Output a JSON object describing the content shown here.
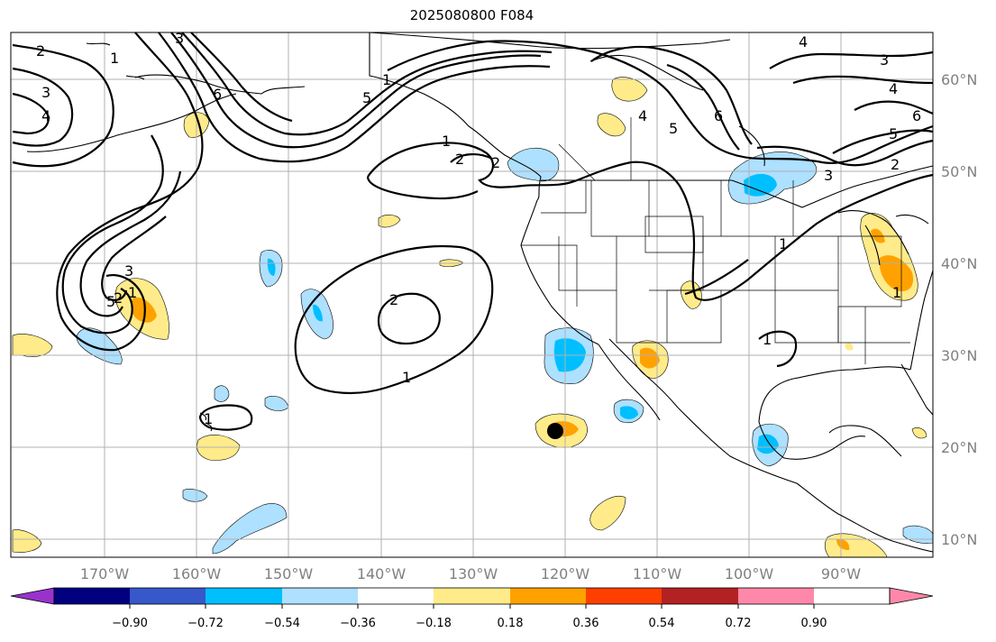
{
  "title": "2025080800 F084",
  "map": {
    "projection": "plate-carree",
    "lon_range": [
      -180,
      -80
    ],
    "lat_range": [
      8,
      65
    ],
    "lat_labels": [
      "10°N",
      "20°N",
      "30°N",
      "40°N",
      "50°N",
      "60°N"
    ],
    "lon_labels": [
      "170°W",
      "160°W",
      "150°W",
      "140°W",
      "130°W",
      "120°W",
      "110°W",
      "100°W",
      "90°W"
    ],
    "contour_labels": [
      "2",
      "1",
      "3",
      "4",
      "5",
      "6",
      "2",
      "1",
      "1",
      "5",
      "4",
      "3",
      "2",
      "1",
      "6",
      "5",
      "4",
      "3",
      "2",
      "1",
      "4",
      "3",
      "6",
      "5",
      "2",
      "3",
      "2",
      "1",
      "1",
      "1",
      "1"
    ],
    "marker": "storm-center-dot"
  },
  "colorbar": {
    "tick_labels": [
      "−0.90",
      "−0.72",
      "−0.54",
      "−0.36",
      "−0.18",
      "0.18",
      "0.36",
      "0.54",
      "0.72",
      "0.90"
    ],
    "colors": [
      "#9932cc",
      "#000080",
      "#3658c8",
      "#00bfff",
      "#aee0ff",
      "#ffffff",
      "#ffeb8a",
      "#ffa200",
      "#ff3f00",
      "#b22222",
      "#ff88aa"
    ]
  }
}
